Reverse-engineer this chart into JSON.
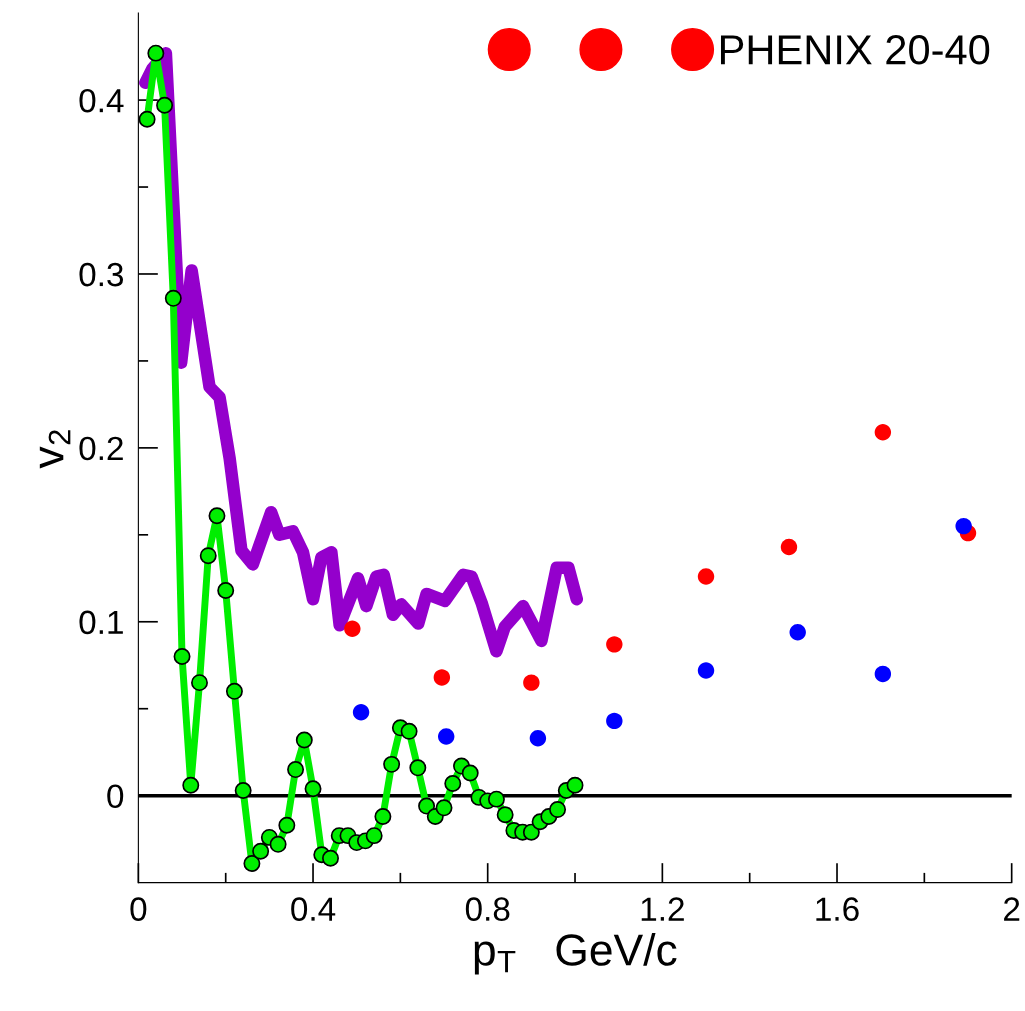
{
  "chart_data": {
    "type": "line",
    "xlabel": "p$_{T}$   GeV/c",
    "ylabel": "v$_{2}$",
    "xlim": [
      0,
      2
    ],
    "ylim": [
      -0.05,
      0.45
    ],
    "xticks": [
      0,
      {
        "value": 0.2,
        "label": null
      },
      0.4,
      {
        "value": 0.6,
        "label": null
      },
      0.8,
      {
        "value": 1.0,
        "label": null
      },
      1.2,
      {
        "value": 1.4,
        "label": null
      },
      1.6,
      {
        "value": 1.8,
        "label": null
      },
      2
    ],
    "yticks": [
      0,
      {
        "value": 0.05,
        "label": null
      },
      0.1,
      {
        "value": 0.15,
        "label": null
      },
      0.2,
      {
        "value": 0.25,
        "label": null
      },
      0.3,
      {
        "value": 0.35,
        "label": null
      },
      0.4
    ],
    "grid": false,
    "legend": "top right",
    "ref_lines": [
      {
        "axis": "y",
        "value": 0,
        "color": "#000000",
        "line_style": "solid"
      }
    ],
    "series": [
      {
        "color": "#9400cc",
        "marker": "none",
        "line_style": "solid",
        "x": [
          0.016,
          0.032,
          0.063,
          0.098,
          0.122,
          0.163,
          0.186,
          0.209,
          0.236,
          0.262,
          0.304,
          0.323,
          0.354,
          0.377,
          0.4,
          0.419,
          0.442,
          0.461,
          0.503,
          0.522,
          0.545,
          0.562,
          0.583,
          0.602,
          0.641,
          0.66,
          0.702,
          0.744,
          0.763,
          0.786,
          0.82,
          0.839,
          0.881,
          0.923,
          0.958,
          0.985,
          1.004
        ],
        "values": [
          0.41,
          0.418,
          0.427,
          0.249,
          0.302,
          0.235,
          0.229,
          0.194,
          0.141,
          0.133,
          0.163,
          0.15,
          0.152,
          0.14,
          0.113,
          0.137,
          0.14,
          0.098,
          0.125,
          0.109,
          0.126,
          0.127,
          0.104,
          0.11,
          0.099,
          0.116,
          0.112,
          0.127,
          0.126,
          0.111,
          0.083,
          0.097,
          0.109,
          0.089,
          0.131,
          0.131,
          0.113
        ]
      },
      {
        "color": "#00ee00",
        "marker": "circle",
        "line_style": "solid",
        "x": [
          0.02,
          0.04,
          0.06,
          0.08,
          0.1,
          0.12,
          0.14,
          0.16,
          0.18,
          0.2,
          0.22,
          0.24,
          0.26,
          0.28,
          0.3,
          0.32,
          0.34,
          0.36,
          0.38,
          0.4,
          0.42,
          0.44,
          0.46,
          0.48,
          0.5,
          0.52,
          0.54,
          0.56,
          0.58,
          0.6,
          0.62,
          0.64,
          0.66,
          0.68,
          0.7,
          0.72,
          0.74,
          0.76,
          0.78,
          0.8,
          0.82,
          0.84,
          0.86,
          0.88,
          0.9,
          0.92,
          0.94,
          0.96,
          0.98,
          1.0
        ],
        "values": [
          0.389,
          0.427,
          0.397,
          0.286,
          0.08,
          0.006,
          0.065,
          0.138,
          0.161,
          0.118,
          0.06,
          0.003,
          -0.039,
          -0.032,
          -0.024,
          -0.028,
          -0.017,
          0.015,
          0.032,
          0.004,
          -0.034,
          -0.036,
          -0.023,
          -0.023,
          -0.027,
          -0.026,
          -0.023,
          -0.012,
          0.018,
          0.039,
          0.037,
          0.016,
          -0.006,
          -0.012,
          -0.007,
          0.007,
          0.017,
          0.013,
          -0.001,
          -0.003,
          -0.002,
          -0.011,
          -0.02,
          -0.021,
          -0.021,
          -0.015,
          -0.012,
          -0.008,
          0.003,
          0.006
        ]
      },
      {
        "type": "scatter",
        "name": "PHENIX 20-40",
        "color": "#ff0000",
        "marker": "circle",
        "x": [
          0.49,
          0.695,
          0.9,
          1.09,
          1.3,
          1.49,
          1.705,
          1.9
        ],
        "values": [
          0.096,
          0.068,
          0.065,
          0.087,
          0.126,
          0.143,
          0.209,
          0.151
        ]
      },
      {
        "type": "scatter",
        "color": "#0000ff",
        "marker": "circle",
        "x": [
          0.51,
          0.705,
          0.915,
          1.09,
          1.3,
          1.51,
          1.705,
          1.89
        ],
        "values": [
          0.048,
          0.034,
          0.033,
          0.043,
          0.072,
          0.094,
          0.07,
          0.155
        ]
      }
    ]
  }
}
